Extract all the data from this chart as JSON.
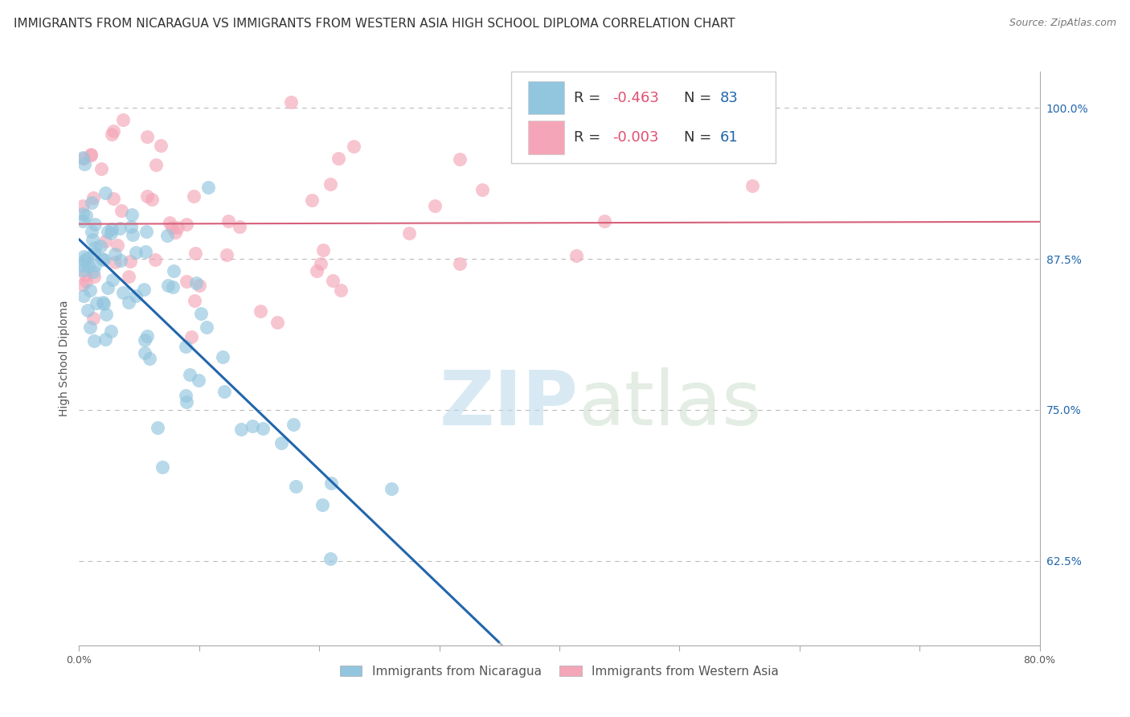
{
  "title": "IMMIGRANTS FROM NICARAGUA VS IMMIGRANTS FROM WESTERN ASIA HIGH SCHOOL DIPLOMA CORRELATION CHART",
  "source": "Source: ZipAtlas.com",
  "ylabel": "High School Diploma",
  "xlim": [
    0.0,
    0.8
  ],
  "ylim": [
    0.555,
    1.03
  ],
  "xtick_vals": [
    0.0,
    0.1,
    0.2,
    0.3,
    0.4,
    0.5,
    0.6,
    0.7,
    0.8
  ],
  "xticklabels": [
    "0.0%",
    "",
    "",
    "",
    "",
    "",
    "",
    "",
    "80.0%"
  ],
  "yticks_right": [
    0.625,
    0.75,
    0.875,
    1.0
  ],
  "ytick_right_labels": [
    "62.5%",
    "75.0%",
    "87.5%",
    "100.0%"
  ],
  "blue_color": "#92c5de",
  "pink_color": "#f4a6b8",
  "blue_line_color": "#2166ac",
  "pink_line_color": "#d6607a",
  "legend_label_blue": "Immigrants from Nicaragua",
  "legend_label_pink": "Immigrants from Western Asia",
  "watermark_zip": "ZIP",
  "watermark_atlas": "atlas",
  "grid_color": "#bbbbbb",
  "background_color": "#ffffff",
  "title_fontsize": 11,
  "source_fontsize": 9,
  "axis_label_fontsize": 10,
  "tick_fontsize": 9,
  "legend_fontsize": 13,
  "r_color": "#e05070",
  "n_color": "#2166ac",
  "blue_seed": 42,
  "pink_seed": 99
}
